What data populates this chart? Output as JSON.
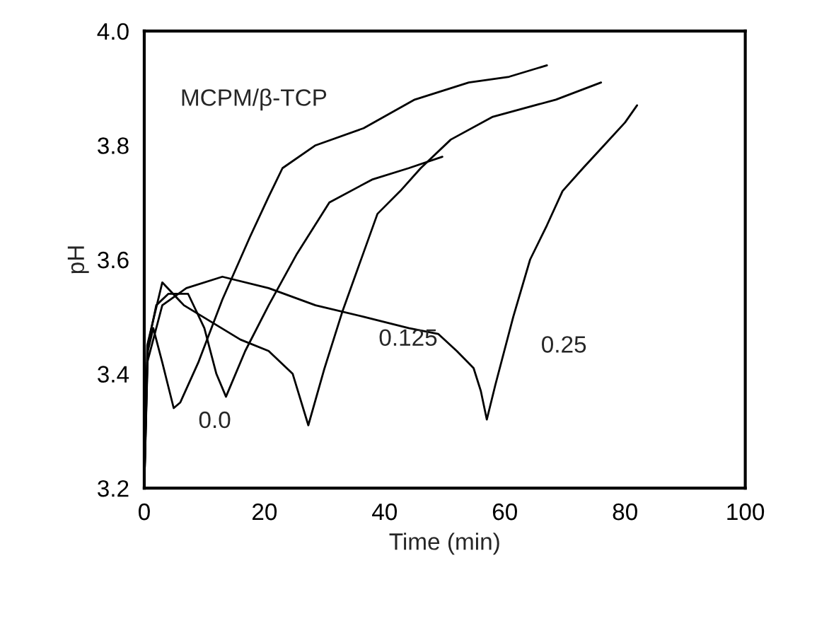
{
  "chart_data": {
    "type": "line",
    "xlabel": "Time (min)",
    "ylabel": "pH",
    "xlim": [
      0,
      100
    ],
    "xticks": [
      0,
      20,
      40,
      60,
      80,
      100
    ],
    "ylim": [
      3.2,
      4.0
    ],
    "yticks": [
      {
        "value": 3.2,
        "label": "3.2"
      },
      {
        "value": 3.4,
        "label": "3.4"
      },
      {
        "value": 3.6,
        "label": "3.6"
      },
      {
        "value": 3.8,
        "label": "3.8"
      },
      {
        "value": 4.0,
        "label": "4.0"
      }
    ],
    "grid": false,
    "marker": "none",
    "line_style": "solid",
    "series": [
      {
        "color": "#000000",
        "x": [
          0,
          0.6,
          1.5,
          3,
          4.9,
          6,
          9,
          13,
          17.6,
          20.7,
          23,
          28.5,
          36.5,
          45,
          54,
          60.7,
          67
        ],
        "values": [
          3.2,
          3.44,
          3.48,
          3.42,
          3.34,
          3.35,
          3.42,
          3.53,
          3.64,
          3.71,
          3.76,
          3.8,
          3.83,
          3.88,
          3.91,
          3.92,
          3.94
        ]
      },
      {
        "color": "#000000",
        "x": [
          0,
          0.6,
          2,
          4,
          7.3,
          10,
          12,
          13.6,
          16.8,
          20.7,
          25.4,
          30.8,
          37.9,
          44,
          49.6
        ],
        "values": [
          3.2,
          3.45,
          3.52,
          3.54,
          3.54,
          3.48,
          3.4,
          3.36,
          3.44,
          3.52,
          3.61,
          3.7,
          3.74,
          3.76,
          3.78
        ]
      },
      {
        "color": "#000000",
        "x": [
          0,
          0.5,
          3,
          6.6,
          16,
          20.7,
          24.7,
          27.3,
          30,
          33,
          38.8,
          42.6,
          46,
          51,
          58,
          68.5,
          76
        ],
        "values": [
          3.2,
          3.45,
          3.56,
          3.52,
          3.46,
          3.44,
          3.4,
          3.31,
          3.41,
          3.51,
          3.68,
          3.72,
          3.76,
          3.81,
          3.85,
          3.88,
          3.91
        ]
      },
      {
        "color": "#000000",
        "x": [
          0,
          0.5,
          3,
          7,
          13,
          20.7,
          28.5,
          36.5,
          44,
          48.9,
          52,
          54.8,
          56,
          57,
          58.4,
          61.4,
          64.2,
          67,
          69.6,
          73,
          76.5,
          80,
          82
        ],
        "values": [
          3.2,
          3.42,
          3.52,
          3.55,
          3.57,
          3.55,
          3.52,
          3.5,
          3.48,
          3.47,
          3.44,
          3.41,
          3.37,
          3.32,
          3.38,
          3.5,
          3.6,
          3.66,
          3.72,
          3.76,
          3.8,
          3.84,
          3.87
        ]
      }
    ],
    "annotations": [
      "MCPM/β-TCP",
      "0.0",
      "0.125",
      "0.25"
    ]
  }
}
